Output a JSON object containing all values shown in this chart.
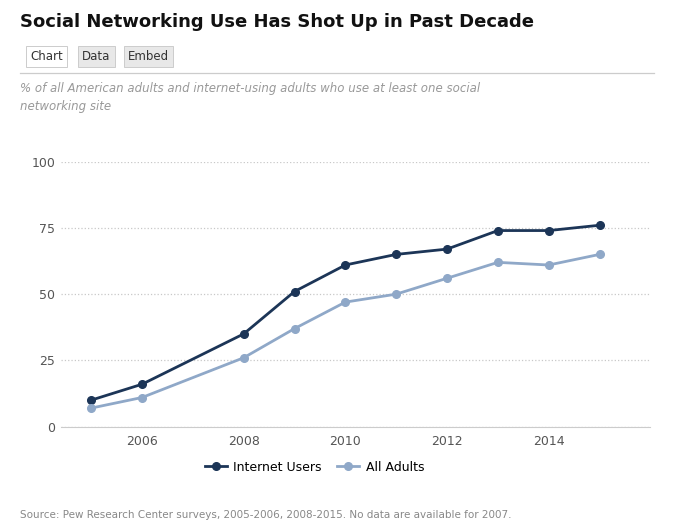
{
  "title": "Social Networking Use Has Shot Up in Past Decade",
  "subtitle": "% of all American adults and internet-using adults who use at least one social\nnetworking site",
  "source": "Source: Pew Research Center surveys, 2005-2006, 2008-2015. No data are available for 2007.",
  "tabs": [
    "Chart",
    "Data",
    "Embed"
  ],
  "years": [
    2005,
    2006,
    2008,
    2009,
    2010,
    2011,
    2012,
    2013,
    2014,
    2015
  ],
  "internet_users": [
    10,
    16,
    35,
    51,
    61,
    65,
    67,
    74,
    74,
    76
  ],
  "all_adults": [
    7,
    11,
    26,
    37,
    47,
    50,
    56,
    62,
    61,
    65
  ],
  "internet_color": "#1c3557",
  "adults_color": "#8fa8c8",
  "bg_color": "#ffffff",
  "grid_color": "#c8c8c8",
  "ylim": [
    0,
    100
  ],
  "yticks": [
    0,
    25,
    50,
    75,
    100
  ],
  "tick_color": "#555555",
  "title_color": "#111111",
  "subtitle_color": "#999999",
  "source_color": "#888888",
  "legend_internet": "Internet Users",
  "legend_adults": "All Adults",
  "tab_active_color": "#ffffff",
  "tab_inactive_color": "#e8e8e8",
  "tab_border_color": "#cccccc",
  "tab_text_color": "#333333",
  "separator_color": "#cccccc"
}
